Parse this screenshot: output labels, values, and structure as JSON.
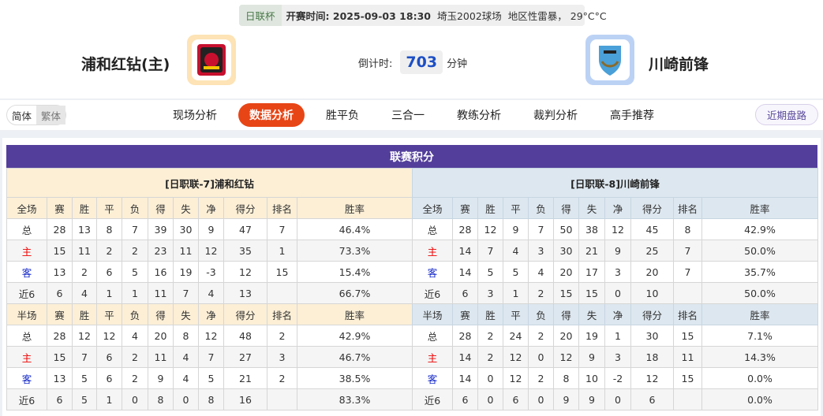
{
  "match": {
    "cup": "日联杯",
    "kickoff_label": "开赛时间:",
    "kickoff": "2025-09-03 18:30",
    "venue": "埼玉2002球场",
    "weather": "地区性雷暴， 29°C°C"
  },
  "home_team": {
    "name": "浦和红钻(主)",
    "logo": "urawa-reds-crest",
    "color": "#fde3b5"
  },
  "away_team": {
    "name": "川崎前锋",
    "logo": "kawasaki-frontale-crest",
    "color": "#bcd2f5"
  },
  "countdown": {
    "label": "倒计时:",
    "value": "703",
    "unit": "分钟"
  },
  "lang": {
    "simplified": "简体",
    "traditional": "繁体"
  },
  "tabs": [
    {
      "label": "现场分析"
    },
    {
      "label": "数据分析",
      "active": true
    },
    {
      "label": "胜平负"
    },
    {
      "label": "三合一"
    },
    {
      "label": "教练分析"
    },
    {
      "label": "裁判分析"
    },
    {
      "label": "高手推荐"
    }
  ],
  "recent_button": "近期盘路",
  "accent": "#e84516",
  "standings": {
    "title": "联赛积分",
    "columns_full": [
      "全场",
      "赛",
      "胜",
      "平",
      "负",
      "得",
      "失",
      "净",
      "得分",
      "排名",
      "胜率"
    ],
    "columns_half": [
      "半场",
      "赛",
      "胜",
      "平",
      "负",
      "得",
      "失",
      "净",
      "得分",
      "排名",
      "胜率"
    ],
    "home": {
      "header": "[日职联-7]浦和红钻",
      "full": [
        [
          "总",
          "28",
          "13",
          "8",
          "7",
          "39",
          "30",
          "9",
          "47",
          "7",
          "46.4%"
        ],
        [
          "主",
          "15",
          "11",
          "2",
          "2",
          "23",
          "11",
          "12",
          "35",
          "1",
          "73.3%"
        ],
        [
          "客",
          "13",
          "2",
          "6",
          "5",
          "16",
          "19",
          "-3",
          "12",
          "15",
          "15.4%"
        ],
        [
          "近6",
          "6",
          "4",
          "1",
          "1",
          "11",
          "7",
          "4",
          "13",
          "",
          "66.7%"
        ]
      ],
      "half": [
        [
          "总",
          "28",
          "12",
          "12",
          "4",
          "20",
          "8",
          "12",
          "48",
          "2",
          "42.9%"
        ],
        [
          "主",
          "15",
          "7",
          "6",
          "2",
          "11",
          "4",
          "7",
          "27",
          "3",
          "46.7%"
        ],
        [
          "客",
          "13",
          "5",
          "6",
          "2",
          "9",
          "4",
          "5",
          "21",
          "2",
          "38.5%"
        ],
        [
          "近6",
          "6",
          "5",
          "1",
          "0",
          "8",
          "0",
          "8",
          "16",
          "",
          "83.3%"
        ]
      ]
    },
    "away": {
      "header": "[日职联-8]川崎前锋",
      "full": [
        [
          "总",
          "28",
          "12",
          "9",
          "7",
          "50",
          "38",
          "12",
          "45",
          "8",
          "42.9%"
        ],
        [
          "主",
          "14",
          "7",
          "4",
          "3",
          "30",
          "21",
          "9",
          "25",
          "7",
          "50.0%"
        ],
        [
          "客",
          "14",
          "5",
          "5",
          "4",
          "20",
          "17",
          "3",
          "20",
          "7",
          "35.7%"
        ],
        [
          "近6",
          "6",
          "3",
          "1",
          "2",
          "15",
          "15",
          "0",
          "10",
          "",
          "50.0%"
        ]
      ],
      "half": [
        [
          "总",
          "28",
          "2",
          "24",
          "2",
          "20",
          "19",
          "1",
          "30",
          "15",
          "7.1%"
        ],
        [
          "主",
          "14",
          "2",
          "12",
          "0",
          "12",
          "9",
          "3",
          "18",
          "11",
          "14.3%"
        ],
        [
          "客",
          "14",
          "0",
          "12",
          "2",
          "8",
          "10",
          "-2",
          "12",
          "15",
          "0.0%"
        ],
        [
          "近6",
          "6",
          "0",
          "6",
          "0",
          "9",
          "9",
          "0",
          "6",
          "",
          "0.0%"
        ]
      ]
    }
  }
}
